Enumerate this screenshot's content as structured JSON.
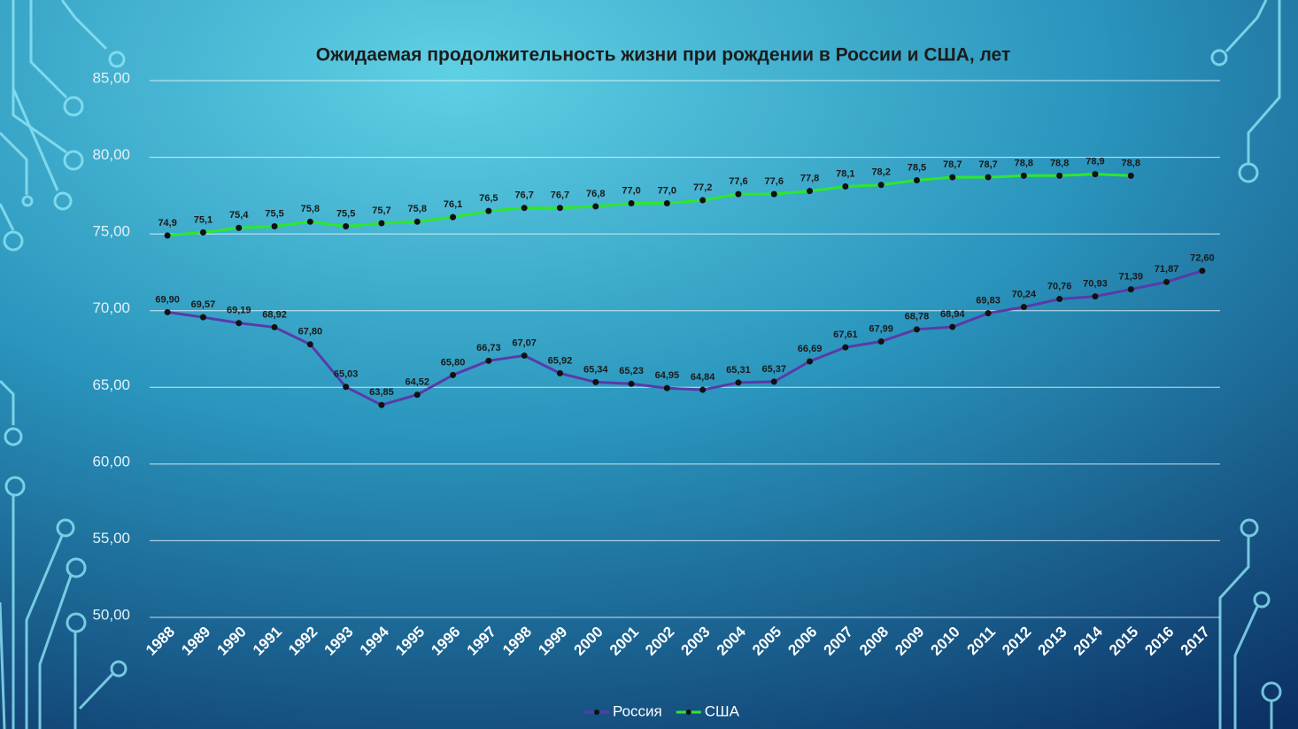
{
  "chart_data": {
    "type": "line",
    "title": "Ожидаемая продолжительность жизни при рождении в России и США, лет",
    "categories": [
      "1988",
      "1989",
      "1990",
      "1991",
      "1992",
      "1993",
      "1994",
      "1995",
      "1996",
      "1997",
      "1998",
      "1999",
      "2000",
      "2001",
      "2002",
      "2003",
      "2004",
      "2005",
      "2006",
      "2007",
      "2008",
      "2009",
      "2010",
      "2011",
      "2012",
      "2013",
      "2014",
      "2015",
      "2016",
      "2017"
    ],
    "series": [
      {
        "name": "Россия",
        "color": "#5a3aa8",
        "values": [
          69.9,
          69.57,
          69.19,
          68.92,
          67.8,
          65.03,
          63.85,
          64.52,
          65.8,
          66.73,
          67.07,
          65.92,
          65.34,
          65.23,
          64.95,
          64.84,
          65.31,
          65.37,
          66.69,
          67.61,
          67.99,
          68.78,
          68.94,
          69.83,
          70.24,
          70.76,
          70.93,
          71.39,
          71.87,
          72.6
        ],
        "value_labels": [
          "69,90",
          "69,57",
          "69,19",
          "68,92",
          "67,80",
          "65,03",
          "63,85",
          "64,52",
          "65,80",
          "66,73",
          "67,07",
          "65,92",
          "65,34",
          "65,23",
          "64,95",
          "64,84",
          "65,31",
          "65,37",
          "66,69",
          "67,61",
          "67,99",
          "68,78",
          "68,94",
          "69,83",
          "70,24",
          "70,76",
          "70,93",
          "71,39",
          "71,87",
          "72,60"
        ]
      },
      {
        "name": "США",
        "color": "#2ee82a",
        "values": [
          74.9,
          75.1,
          75.4,
          75.5,
          75.8,
          75.5,
          75.7,
          75.8,
          76.1,
          76.5,
          76.7,
          76.7,
          76.8,
          77.0,
          77.0,
          77.2,
          77.6,
          77.6,
          77.8,
          78.1,
          78.2,
          78.5,
          78.7,
          78.7,
          78.8,
          78.8,
          78.9,
          78.8,
          null,
          null
        ],
        "value_labels": [
          "74,9",
          "75,1",
          "75,4",
          "75,5",
          "75,8",
          "75,5",
          "75,7",
          "75,8",
          "76,1",
          "76,5",
          "76,7",
          "76,7",
          "76,8",
          "77,0",
          "77,0",
          "77,2",
          "77,6",
          "77,6",
          "77,8",
          "78,1",
          "78,2",
          "78,5",
          "78,7",
          "78,7",
          "78,8",
          "78,8",
          "78,9",
          "78,8",
          null,
          null
        ]
      }
    ],
    "ylim": [
      50,
      85
    ],
    "yticks": [
      {
        "value": 50,
        "label": "50,00"
      },
      {
        "value": 55,
        "label": "55,00"
      },
      {
        "value": 60,
        "label": "60,00"
      },
      {
        "value": 65,
        "label": "65,00"
      },
      {
        "value": 70,
        "label": "70,00"
      },
      {
        "value": 75,
        "label": "75,00"
      },
      {
        "value": 80,
        "label": "80,00"
      },
      {
        "value": 85,
        "label": "85,00"
      }
    ],
    "grid": true,
    "legend": "bottom"
  }
}
